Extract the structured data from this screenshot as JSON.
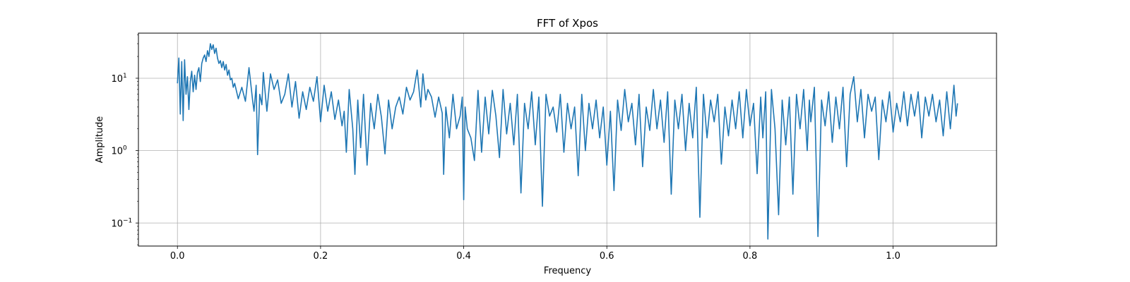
{
  "chart_data": {
    "type": "line",
    "title": "FFT of Xpos",
    "xlabel": "Frequency",
    "ylabel": "Amplitude",
    "xlim": [
      -0.0545,
      1.1445
    ],
    "ylim": [
      0.048,
      42
    ],
    "yscale": "log",
    "grid": true,
    "x_ticks": [
      {
        "value": 0.0,
        "label": "0.0"
      },
      {
        "value": 0.2,
        "label": "0.2"
      },
      {
        "value": 0.4,
        "label": "0.4"
      },
      {
        "value": 0.6,
        "label": "0.6"
      },
      {
        "value": 0.8,
        "label": "0.8"
      },
      {
        "value": 1.0,
        "label": "1.0"
      }
    ],
    "y_ticks": [
      {
        "value": 0.1,
        "base": "10",
        "exp": "−1"
      },
      {
        "value": 1,
        "base": "10",
        "exp": "0"
      },
      {
        "value": 10,
        "base": "10",
        "exp": "1"
      }
    ],
    "series": [
      {
        "color": "#1f77b4",
        "x": [
          0.0,
          0.002,
          0.004,
          0.006,
          0.008,
          0.01,
          0.012,
          0.014,
          0.016,
          0.018,
          0.02,
          0.022,
          0.024,
          0.026,
          0.028,
          0.03,
          0.032,
          0.034,
          0.036,
          0.038,
          0.04,
          0.042,
          0.044,
          0.046,
          0.048,
          0.05,
          0.052,
          0.054,
          0.056,
          0.058,
          0.06,
          0.062,
          0.064,
          0.066,
          0.068,
          0.07,
          0.072,
          0.074,
          0.076,
          0.078,
          0.08,
          0.085,
          0.09,
          0.095,
          0.1,
          0.105,
          0.107,
          0.11,
          0.112,
          0.115,
          0.118,
          0.12,
          0.125,
          0.13,
          0.135,
          0.14,
          0.145,
          0.15,
          0.155,
          0.16,
          0.165,
          0.17,
          0.175,
          0.18,
          0.185,
          0.19,
          0.195,
          0.2,
          0.205,
          0.21,
          0.215,
          0.22,
          0.225,
          0.23,
          0.233,
          0.236,
          0.24,
          0.245,
          0.248,
          0.252,
          0.256,
          0.26,
          0.265,
          0.27,
          0.275,
          0.28,
          0.285,
          0.29,
          0.295,
          0.3,
          0.305,
          0.31,
          0.315,
          0.32,
          0.325,
          0.33,
          0.335,
          0.34,
          0.343,
          0.347,
          0.35,
          0.355,
          0.36,
          0.365,
          0.37,
          0.372,
          0.375,
          0.38,
          0.385,
          0.39,
          0.395,
          0.398,
          0.4,
          0.402,
          0.405,
          0.41,
          0.415,
          0.42,
          0.425,
          0.43,
          0.435,
          0.44,
          0.445,
          0.45,
          0.455,
          0.46,
          0.465,
          0.47,
          0.475,
          0.48,
          0.485,
          0.49,
          0.495,
          0.5,
          0.505,
          0.51,
          0.515,
          0.52,
          0.525,
          0.53,
          0.535,
          0.54,
          0.545,
          0.55,
          0.555,
          0.56,
          0.565,
          0.57,
          0.575,
          0.58,
          0.585,
          0.59,
          0.595,
          0.6,
          0.605,
          0.61,
          0.615,
          0.62,
          0.625,
          0.63,
          0.635,
          0.64,
          0.645,
          0.65,
          0.655,
          0.66,
          0.665,
          0.67,
          0.675,
          0.68,
          0.685,
          0.69,
          0.695,
          0.7,
          0.705,
          0.71,
          0.715,
          0.72,
          0.725,
          0.73,
          0.735,
          0.74,
          0.745,
          0.75,
          0.755,
          0.76,
          0.765,
          0.77,
          0.775,
          0.78,
          0.785,
          0.79,
          0.795,
          0.8,
          0.805,
          0.81,
          0.815,
          0.818,
          0.822,
          0.825,
          0.83,
          0.835,
          0.84,
          0.845,
          0.85,
          0.855,
          0.86,
          0.865,
          0.87,
          0.875,
          0.88,
          0.883,
          0.885,
          0.89,
          0.895,
          0.9,
          0.905,
          0.91,
          0.915,
          0.92,
          0.925,
          0.93,
          0.935,
          0.94,
          0.945,
          0.95,
          0.955,
          0.96,
          0.965,
          0.97,
          0.975,
          0.98,
          0.985,
          0.99,
          0.995,
          1.0,
          1.005,
          1.01,
          1.015,
          1.02,
          1.025,
          1.03,
          1.035,
          1.04,
          1.045,
          1.05,
          1.055,
          1.06,
          1.065,
          1.07,
          1.075,
          1.08,
          1.085,
          1.088,
          1.09
        ],
        "y": [
          8.5,
          19.0,
          3.2,
          17.0,
          2.6,
          18.0,
          6.0,
          10.5,
          3.7,
          9.0,
          12.5,
          6.5,
          11.0,
          7.0,
          12.0,
          14.0,
          9.0,
          16.0,
          19.0,
          21.0,
          17.0,
          24.0,
          20.0,
          30.0,
          25.0,
          29.0,
          22.0,
          26.0,
          19.0,
          16.0,
          17.5,
          14.0,
          17.0,
          13.0,
          15.5,
          11.0,
          13.0,
          9.5,
          10.0,
          7.5,
          8.5,
          5.2,
          7.5,
          4.8,
          14.0,
          5.0,
          3.5,
          8.0,
          0.88,
          6.0,
          4.3,
          12.0,
          3.5,
          11.5,
          7.0,
          9.5,
          4.5,
          6.0,
          11.5,
          4.0,
          9.0,
          2.8,
          6.5,
          3.7,
          7.5,
          4.8,
          10.5,
          2.5,
          8.0,
          3.5,
          6.5,
          2.7,
          5.0,
          2.2,
          3.5,
          0.95,
          7.0,
          2.0,
          0.47,
          5.0,
          1.1,
          6.0,
          0.63,
          4.5,
          2.0,
          6.0,
          2.9,
          0.9,
          5.0,
          2.0,
          4.0,
          5.5,
          3.2,
          7.5,
          5.0,
          6.5,
          13.0,
          4.0,
          11.5,
          5.0,
          7.0,
          5.5,
          2.9,
          5.5,
          3.3,
          0.47,
          4.0,
          1.5,
          6.0,
          2.0,
          3.0,
          5.5,
          0.21,
          4.0,
          2.0,
          1.5,
          0.73,
          6.8,
          0.95,
          5.5,
          1.7,
          6.8,
          3.0,
          0.8,
          7.0,
          1.7,
          4.5,
          1.2,
          6.0,
          0.26,
          4.5,
          2.0,
          6.5,
          1.2,
          5.5,
          0.17,
          6.0,
          3.0,
          4.0,
          1.8,
          6.0,
          0.95,
          4.5,
          2.0,
          4.0,
          0.45,
          6.0,
          1.0,
          4.5,
          2.0,
          5.0,
          1.5,
          4.0,
          0.63,
          3.5,
          0.28,
          5.0,
          1.9,
          7.0,
          2.5,
          4.5,
          1.2,
          6.0,
          0.6,
          4.0,
          1.9,
          7.0,
          2.0,
          5.0,
          1.3,
          6.5,
          0.25,
          5.0,
          2.0,
          6.0,
          1.0,
          4.5,
          1.5,
          7.5,
          0.12,
          6.0,
          1.5,
          5.0,
          2.5,
          6.0,
          0.65,
          4.0,
          1.6,
          5.0,
          2.0,
          6.5,
          1.5,
          7.0,
          2.2,
          4.5,
          0.48,
          5.5,
          1.5,
          6.5,
          0.06,
          7.0,
          2.0,
          0.13,
          5.0,
          1.2,
          5.5,
          0.25,
          6.0,
          2.0,
          7.0,
          1.0,
          5.0,
          2.5,
          7.5,
          0.065,
          5.0,
          2.2,
          6.5,
          1.3,
          5.5,
          2.0,
          7.5,
          0.6,
          6.0,
          10.5,
          2.5,
          7.0,
          1.5,
          6.0,
          3.5,
          5.5,
          0.75,
          5.0,
          2.5,
          6.5,
          1.8,
          4.5,
          2.5,
          6.5,
          2.2,
          6.0,
          3.0,
          6.5,
          1.5,
          5.5,
          3.0,
          6.0,
          2.5,
          5.0,
          1.6,
          6.5,
          2.0,
          8.0,
          3.0,
          4.5
        ]
      }
    ]
  }
}
